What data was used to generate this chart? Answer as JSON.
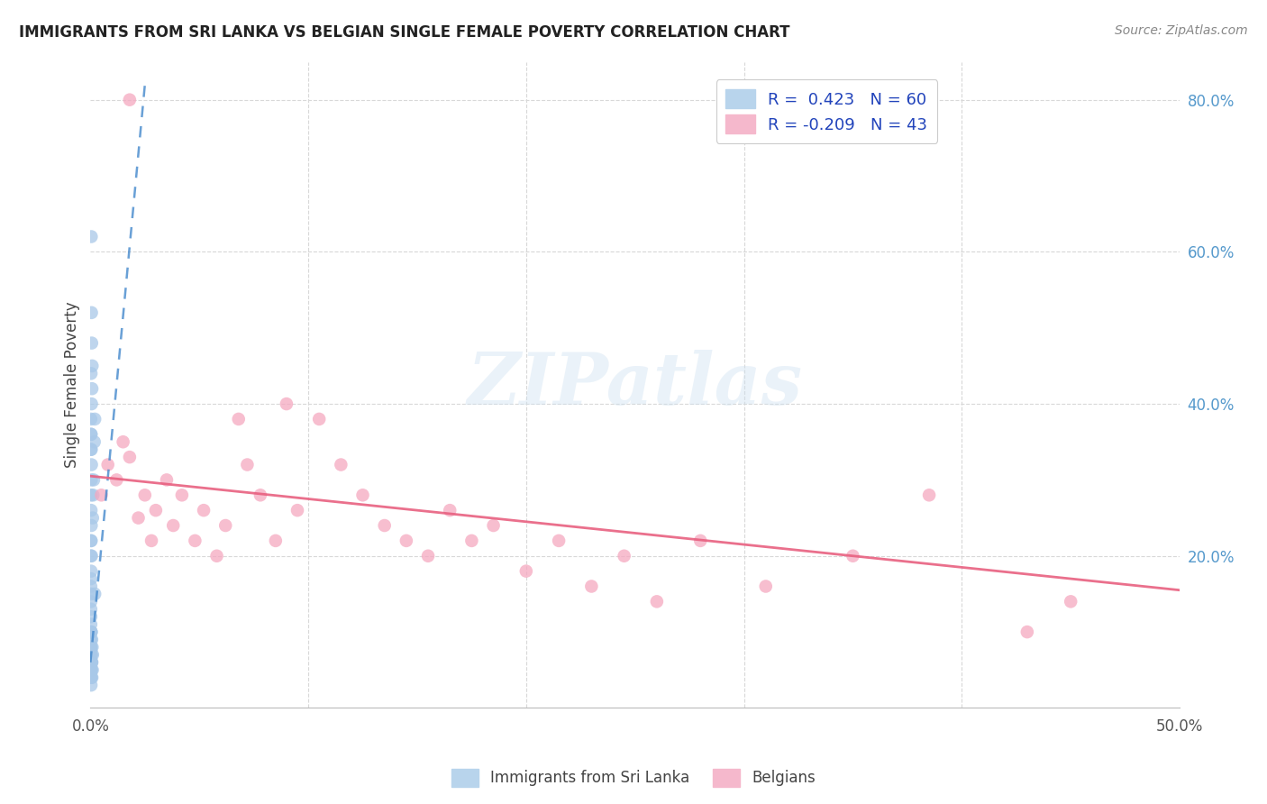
{
  "title": "IMMIGRANTS FROM SRI LANKA VS BELGIAN SINGLE FEMALE POVERTY CORRELATION CHART",
  "source": "Source: ZipAtlas.com",
  "ylabel": "Single Female Poverty",
  "x_min": 0.0,
  "x_max": 0.5,
  "y_min": 0.0,
  "y_max": 0.85,
  "watermark_text": "ZIPatlas",
  "dot_color_blue": "#a8c8e8",
  "dot_color_pink": "#f5a8c0",
  "line_color_blue": "#4488cc",
  "line_color_pink": "#e86080",
  "background_color": "#ffffff",
  "grid_color": "#d8d8d8",
  "blue_scatter_x": [
    0.0002,
    0.0003,
    0.0004,
    0.0005,
    0.0006,
    0.0007,
    0.0008,
    0.0009,
    0.001,
    0.0002,
    0.0003,
    0.0004,
    0.0005,
    0.0006,
    0.0007,
    0.0003,
    0.0004,
    0.0005,
    0.0002,
    0.0003,
    0.0004,
    0.0005,
    0.0002,
    0.0003,
    0.0002,
    0.0003,
    0.0004,
    0.0002,
    0.0003,
    0.0002,
    0.0002,
    0.0003,
    0.0002,
    0.0003,
    0.0002,
    0.0002,
    0.0002,
    0.0003,
    0.0002,
    0.0002,
    0.0002,
    0.0002,
    0.0002,
    0.0002,
    0.0002,
    0.0015,
    0.0018,
    0.002,
    0.0012,
    0.001,
    0.0005,
    0.0007,
    0.0003,
    0.0008,
    0.0006,
    0.0004,
    0.0005,
    0.0003,
    0.002,
    0.0001,
    0.0001
  ],
  "blue_scatter_y": [
    0.06,
    0.08,
    0.1,
    0.07,
    0.09,
    0.06,
    0.08,
    0.05,
    0.07,
    0.05,
    0.06,
    0.04,
    0.05,
    0.06,
    0.04,
    0.22,
    0.24,
    0.2,
    0.28,
    0.26,
    0.3,
    0.32,
    0.34,
    0.36,
    0.38,
    0.36,
    0.34,
    0.12,
    0.1,
    0.14,
    0.16,
    0.18,
    0.2,
    0.22,
    0.08,
    0.06,
    0.04,
    0.03,
    0.05,
    0.07,
    0.09,
    0.11,
    0.13,
    0.15,
    0.17,
    0.3,
    0.35,
    0.38,
    0.28,
    0.25,
    0.4,
    0.42,
    0.44,
    0.45,
    0.48,
    0.62,
    0.52,
    0.1,
    0.15,
    0.08,
    0.08
  ],
  "pink_scatter_x": [
    0.005,
    0.008,
    0.012,
    0.015,
    0.018,
    0.022,
    0.025,
    0.028,
    0.03,
    0.035,
    0.038,
    0.042,
    0.048,
    0.052,
    0.058,
    0.062,
    0.068,
    0.072,
    0.078,
    0.085,
    0.09,
    0.095,
    0.105,
    0.115,
    0.125,
    0.135,
    0.145,
    0.155,
    0.165,
    0.175,
    0.185,
    0.2,
    0.215,
    0.23,
    0.245,
    0.26,
    0.28,
    0.31,
    0.35,
    0.385,
    0.43,
    0.45,
    0.018
  ],
  "pink_scatter_y": [
    0.28,
    0.32,
    0.3,
    0.35,
    0.33,
    0.25,
    0.28,
    0.22,
    0.26,
    0.3,
    0.24,
    0.28,
    0.22,
    0.26,
    0.2,
    0.24,
    0.38,
    0.32,
    0.28,
    0.22,
    0.4,
    0.26,
    0.38,
    0.32,
    0.28,
    0.24,
    0.22,
    0.2,
    0.26,
    0.22,
    0.24,
    0.18,
    0.22,
    0.16,
    0.2,
    0.14,
    0.22,
    0.16,
    0.2,
    0.28,
    0.1,
    0.14,
    0.8
  ],
  "blue_line_x0": 0.0,
  "blue_line_y0": 0.06,
  "blue_line_x1": 0.025,
  "blue_line_y1": 0.82,
  "pink_line_x0": 0.0,
  "pink_line_y0": 0.305,
  "pink_line_x1": 0.5,
  "pink_line_y1": 0.155
}
